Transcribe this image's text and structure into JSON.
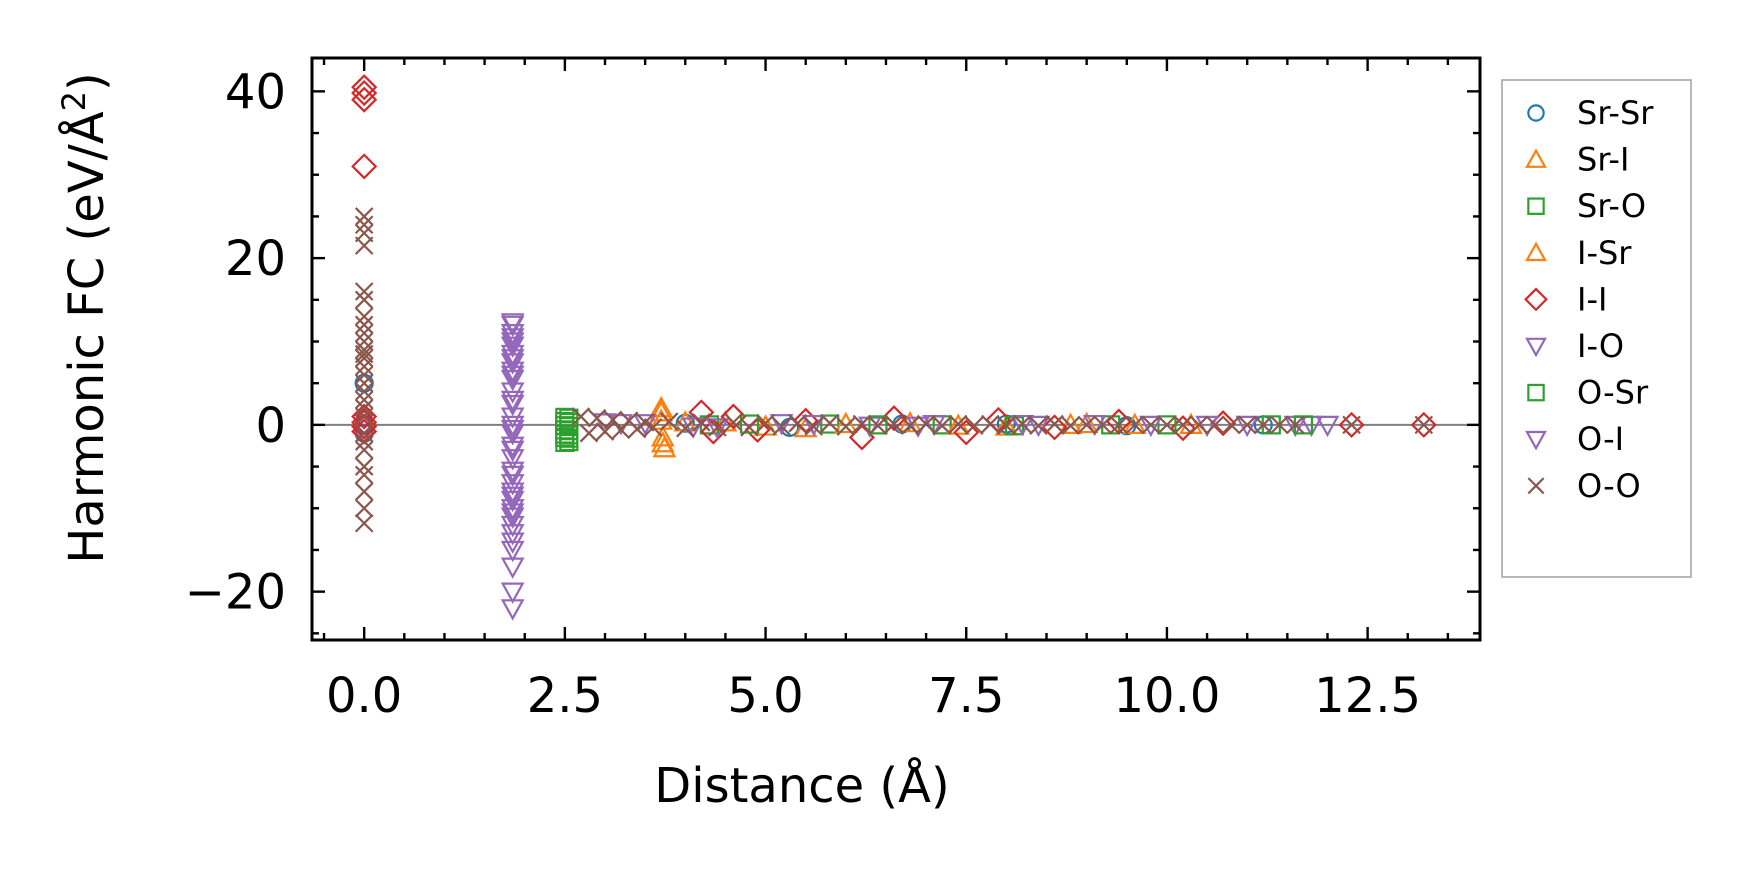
{
  "chart_data": {
    "type": "scatter",
    "xlabel": "Distance (Å)",
    "ylabel": "Harmonic FC (eV/Å",
    "ylabel_sup": "2",
    "ylabel_close": ")",
    "xlim": [
      -0.65,
      13.9
    ],
    "ylim": [
      -25.8,
      44
    ],
    "xticks": [
      0.0,
      2.5,
      5.0,
      7.5,
      10.0,
      12.5
    ],
    "xtick_labels": [
      "0.0",
      "2.5",
      "5.0",
      "7.5",
      "10.0",
      "12.5"
    ],
    "yticks": [
      -20,
      0,
      20,
      40
    ],
    "ytick_labels": [
      "−20",
      "0",
      "20",
      "40"
    ],
    "grid": false,
    "zero_line": 0,
    "legend_position": "right",
    "series": [
      {
        "name": "Sr-Sr",
        "marker": "circle",
        "color": "#1f77b4",
        "x": [
          0,
          0,
          0,
          4.0,
          5.3,
          6.7,
          8.0,
          9.5,
          11.2
        ],
        "y": [
          0,
          5,
          -1,
          0.2,
          -0.3,
          0.1,
          0.1,
          -0.1,
          0
        ]
      },
      {
        "name": "Sr-I",
        "marker": "triangle-up",
        "color": "#ff7f0e",
        "x": [
          3.7,
          3.72,
          3.74,
          3.7,
          4.5,
          5.5,
          6.8,
          8.0,
          9.0,
          10.3
        ],
        "y": [
          2,
          -1.5,
          -2.8,
          0.5,
          0.3,
          -0.4,
          0.2,
          -0.2,
          0.1,
          0
        ]
      },
      {
        "name": "Sr-O",
        "marker": "square",
        "color": "#2ca02c",
        "x": [
          2.55,
          2.55,
          2.55,
          2.55,
          2.55,
          2.55,
          2.55,
          4.3,
          5.8,
          7.2,
          9.3,
          11.3
        ],
        "y": [
          0.8,
          0.3,
          -0.2,
          -0.7,
          -1.2,
          -1.6,
          -2,
          0,
          0.1,
          0,
          0,
          0
        ]
      },
      {
        "name": "I-Sr",
        "marker": "triangle-up",
        "color": "#ff7f0e",
        "x": [
          3.7,
          3.72,
          4.0,
          5.0,
          6.0,
          7.4,
          8.8,
          9.6
        ],
        "y": [
          1.5,
          -2.2,
          0.3,
          -0.2,
          0.1,
          -0.1,
          0,
          0
        ]
      },
      {
        "name": "I-I",
        "marker": "diamond",
        "color": "#d62728",
        "x": [
          0,
          0,
          0,
          0,
          0,
          0,
          0,
          0,
          4.2,
          4.35,
          4.6,
          4.9,
          5.5,
          6.2,
          6.6,
          7.5,
          7.9,
          8.6,
          9.4,
          10.2,
          10.7,
          12.3,
          13.2
        ],
        "y": [
          40.5,
          39.8,
          39,
          31,
          1,
          0.3,
          -0.2,
          -0.8,
          1.5,
          -0.8,
          1,
          -0.6,
          0.5,
          -1.5,
          0.8,
          -0.9,
          0.6,
          -0.3,
          0.4,
          -0.4,
          0.2,
          0,
          0
        ]
      },
      {
        "name": "I-O",
        "marker": "triangle-down",
        "color": "#9467bd",
        "x": [
          1.85,
          1.85,
          1.85,
          1.85,
          1.85,
          1.85,
          1.85,
          1.85,
          1.85,
          1.85,
          1.85,
          1.85,
          1.85,
          1.85,
          1.85,
          1.85,
          1.85,
          1.85,
          1.85,
          1.85,
          1.85,
          1.85,
          1.85,
          1.85,
          1.85,
          1.85,
          3.0,
          3.5,
          4.4,
          5.2,
          6.3,
          7.1,
          8.4,
          9.1,
          10.5,
          11.6,
          11.8,
          12.0
        ],
        "y": [
          12,
          11,
          10,
          9.5,
          8.5,
          7.5,
          6.5,
          5.5,
          4,
          2.5,
          1,
          0,
          -1,
          -2.5,
          -4,
          -5.5,
          -7,
          -8,
          -9,
          -10,
          -11,
          -12,
          -14,
          -17,
          -20,
          -22,
          0.3,
          0.2,
          -0.3,
          0.2,
          -0.1,
          0.1,
          0,
          0.1,
          0,
          0,
          0,
          0
        ]
      },
      {
        "name": "O-Sr",
        "marker": "square",
        "color": "#2ca02c",
        "x": [
          2.5,
          2.5,
          2.5,
          2.5,
          2.5,
          2.5,
          2.5,
          4.8,
          6.4,
          8.1,
          10.0,
          11.7
        ],
        "y": [
          0.9,
          0.4,
          -0.1,
          -0.6,
          -1.1,
          -1.5,
          -2.1,
          0.1,
          0,
          -0.1,
          0,
          0
        ]
      },
      {
        "name": "O-I",
        "marker": "triangle-down",
        "color": "#9467bd",
        "x": [
          1.85,
          1.85,
          1.85,
          1.85,
          1.85,
          1.85,
          1.85,
          1.85,
          1.85,
          1.85,
          1.85,
          1.85,
          3.2,
          4.1,
          5.6,
          6.9,
          8.2,
          9.8,
          11.0
        ],
        "y": [
          12.3,
          10.5,
          8,
          6,
          3,
          -0.5,
          -3,
          -6,
          -8.5,
          -10.5,
          -13,
          -15,
          0.2,
          -0.2,
          0.1,
          -0.1,
          0.1,
          0,
          0
        ]
      },
      {
        "name": "O-O",
        "marker": "x",
        "color": "#8c564b",
        "x": [
          0,
          0,
          0,
          0,
          0,
          0,
          0,
          0,
          0,
          0,
          0,
          0,
          0,
          0,
          0,
          0,
          0,
          0,
          0,
          0,
          0,
          0,
          0,
          0,
          0,
          0,
          0,
          0,
          2.7,
          2.8,
          2.9,
          3.0,
          3.1,
          3.2,
          3.3,
          3.4,
          3.5,
          3.6,
          3.8,
          4.0,
          4.2,
          4.4,
          4.6,
          4.8,
          5.0,
          5.2,
          5.4,
          5.6,
          5.8,
          6.0,
          6.2,
          6.4,
          6.6,
          6.8,
          7.0,
          7.2,
          7.4,
          7.6,
          7.8,
          8.0,
          8.2,
          8.4,
          8.6,
          8.8,
          9.0,
          9.2,
          9.4,
          9.6,
          9.8,
          10.0,
          10.2,
          10.4,
          10.6,
          10.8,
          11.0,
          11.2,
          11.4,
          11.6,
          12.3,
          13.2
        ],
        "y": [
          25,
          24,
          23,
          21.5,
          16,
          15,
          13,
          12,
          11,
          10,
          9,
          8.5,
          8,
          7,
          6,
          5,
          4,
          3,
          2,
          1,
          -1,
          -2,
          -3,
          -5,
          -6,
          -8,
          -10,
          -11.8,
          1,
          -1,
          0.8,
          -0.8,
          0.6,
          -0.6,
          0.5,
          -0.5,
          0.3,
          -0.3,
          0.4,
          -0.4,
          0.3,
          -0.3,
          0.3,
          -0.3,
          0.2,
          -0.2,
          0.2,
          -0.2,
          0.2,
          -0.2,
          0.1,
          -0.1,
          0.1,
          -0.1,
          0.1,
          -0.1,
          0.1,
          -0.1,
          0.1,
          -0.1,
          0.1,
          -0.1,
          0.1,
          -0.1,
          0,
          0,
          0,
          0,
          0,
          0,
          0,
          0,
          0,
          0,
          0,
          0,
          0,
          0,
          0,
          0
        ]
      }
    ]
  }
}
